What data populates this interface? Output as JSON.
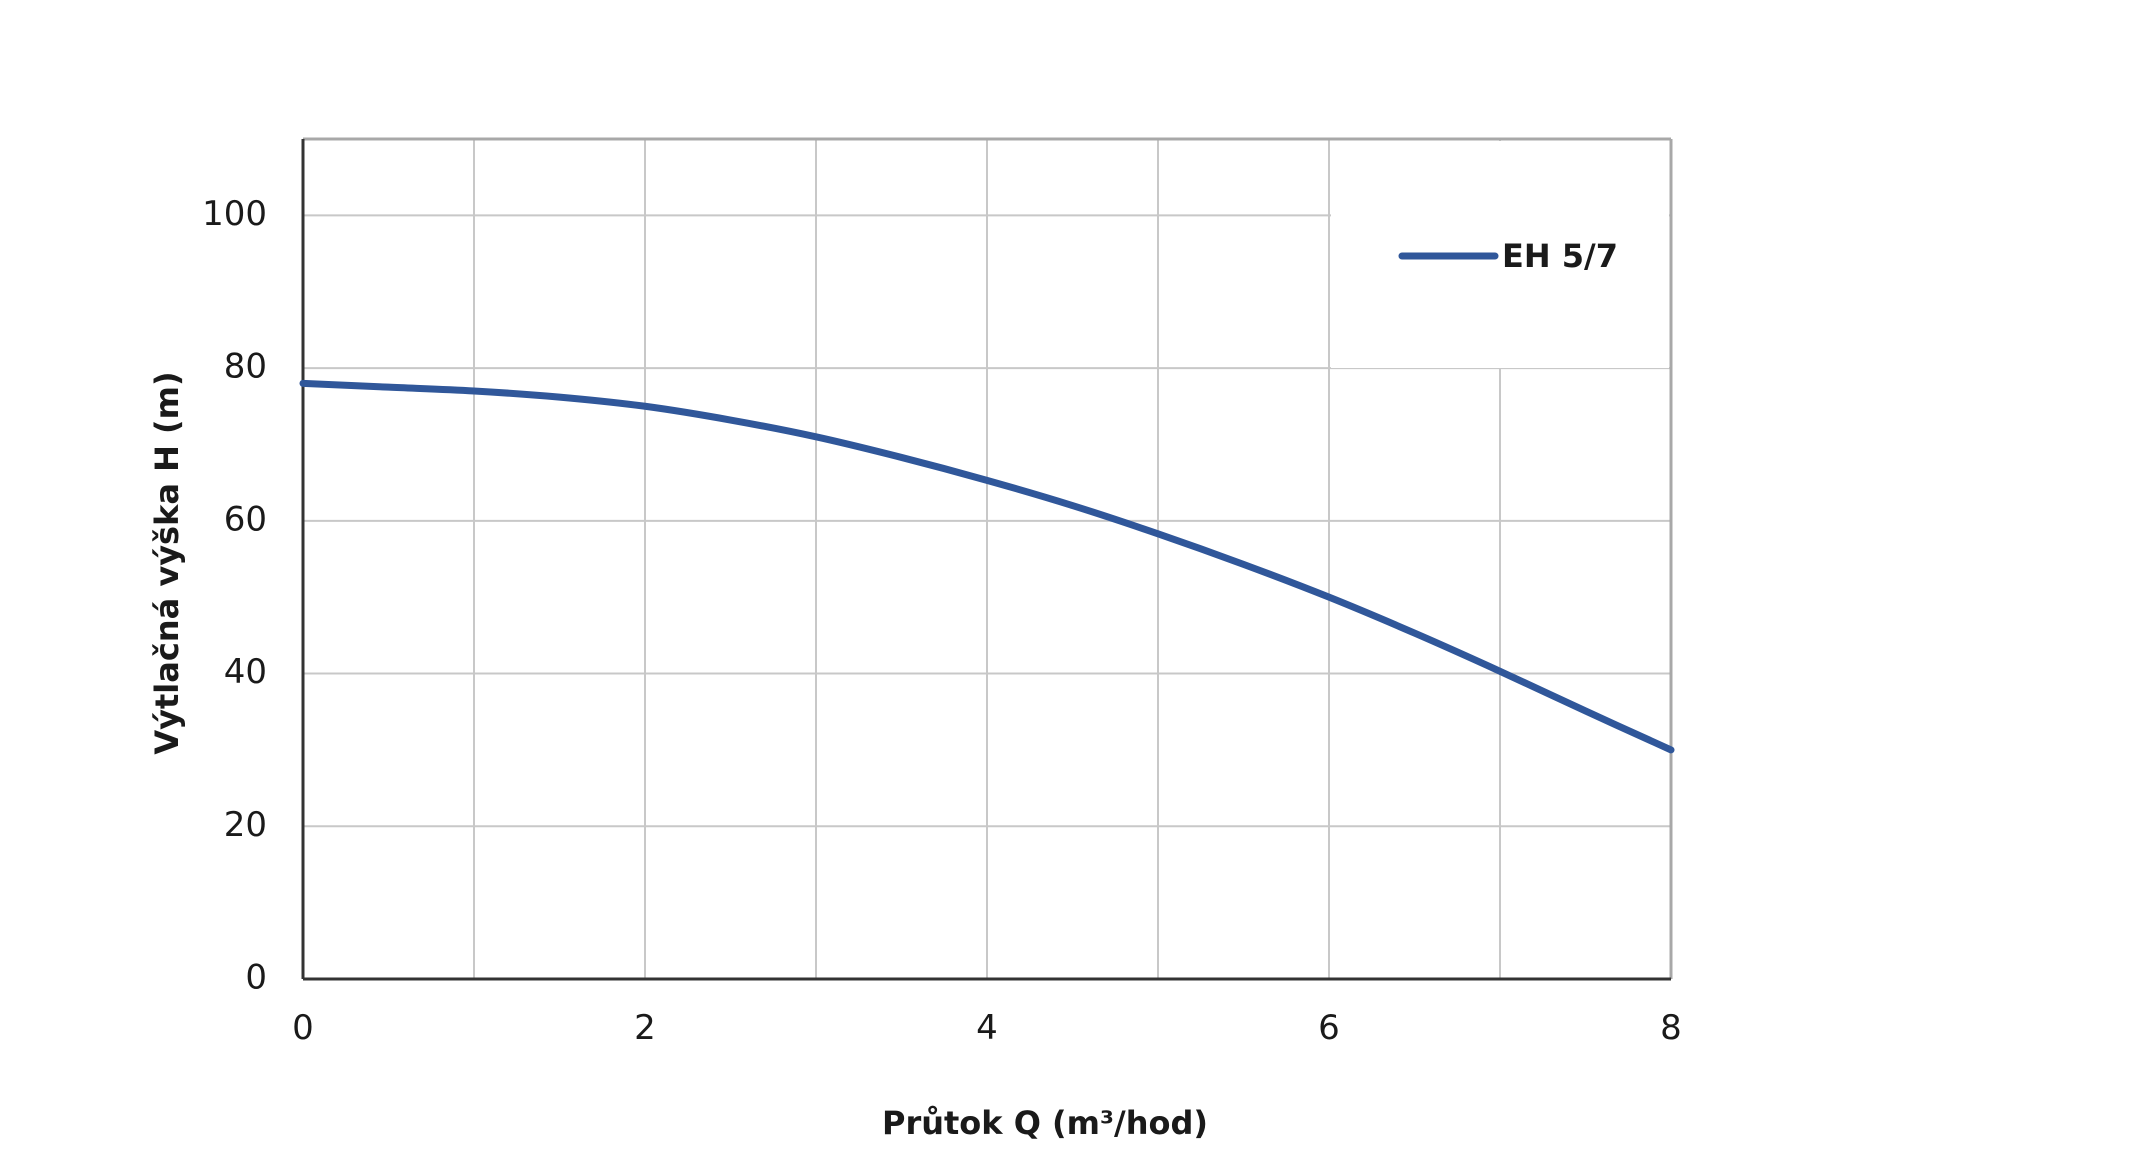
{
  "chart_data": {
    "type": "line",
    "xlabel": "Průtok Q (m³/hod)",
    "ylabel": "Výtlačná výška H (m)",
    "xlim": [
      0,
      8
    ],
    "ylim": [
      0,
      110
    ],
    "xticks": [
      0,
      2,
      4,
      6,
      8
    ],
    "yticks": [
      0,
      20,
      40,
      60,
      80,
      100
    ],
    "grid": true,
    "legend_position": "top-right",
    "series": [
      {
        "name": "EH 5/7",
        "color": "#30579a",
        "x": [
          0,
          0.5,
          1,
          1.5,
          2,
          2.5,
          3,
          3.5,
          4,
          4.5,
          5,
          5.5,
          6,
          6.5,
          7,
          7.5,
          8
        ],
        "y": [
          78,
          77.5,
          77,
          76.2,
          75,
          73.2,
          71,
          68.3,
          65.3,
          62,
          58.3,
          54.3,
          50,
          45.3,
          40.3,
          35.1,
          30
        ]
      }
    ]
  }
}
